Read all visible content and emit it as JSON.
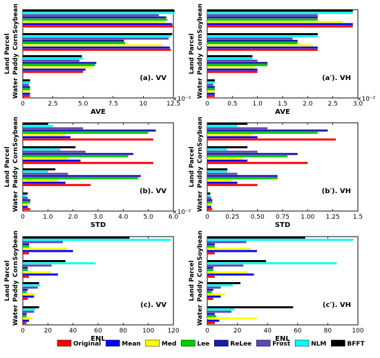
{
  "colors": {
    "Original": "#ff0000",
    "Mean": "#0000ff",
    "Med": "#ffff00",
    "Lee": "#00cc00",
    "ReLee": "#1a1aa8",
    "Frost": "#5d48b0",
    "NLM": "#00ffff",
    "BFFT": "#000000"
  },
  "legend": [
    "Original",
    "Mean",
    "Med",
    "Lee",
    "ReLee",
    "Frost",
    "NLM",
    "BFFT"
  ],
  "chart_data": [
    {
      "type": "bar",
      "title": "(a). VV",
      "xlabel": "AVE",
      "exponent": "×10⁻²",
      "xlim": [
        0,
        12.5
      ],
      "xticks": [
        0,
        2.5,
        5,
        7.5,
        10,
        12.5
      ],
      "xticklabels": [
        "0",
        "2.5",
        "5.0",
        "7.5",
        "10",
        "12.5"
      ],
      "categories": [
        "Soybean",
        "Corn",
        "Paddy",
        "Water"
      ],
      "series": [
        {
          "name": "Original",
          "values": [
            12.5,
            12.3,
            5.0,
            0.6
          ]
        },
        {
          "name": "Mean",
          "values": [
            12.4,
            12.2,
            5.2,
            0.6
          ]
        },
        {
          "name": "Med",
          "values": [
            11.8,
            11.6,
            5.8,
            0.6
          ]
        },
        {
          "name": "Lee",
          "values": [
            12.0,
            8.5,
            6.0,
            0.6
          ]
        },
        {
          "name": "ReLee",
          "values": [
            11.9,
            8.4,
            6.1,
            0.6
          ]
        },
        {
          "name": "Frost",
          "values": [
            11.3,
            12.1,
            4.7,
            0.5
          ]
        },
        {
          "name": "NLM",
          "values": [
            12.6,
            12.3,
            5.0,
            0.6
          ]
        },
        {
          "name": "BFFT",
          "values": [
            12.6,
            12.4,
            4.9,
            0.6
          ]
        }
      ]
    },
    {
      "type": "bar",
      "title": "(a′). VH",
      "xlabel": "AVE",
      "exponent": "×10⁻²",
      "xlim": [
        0,
        3.0
      ],
      "xticks": [
        0,
        0.5,
        1.0,
        1.5,
        2.0,
        2.5,
        3.0
      ],
      "xticklabels": [
        "0",
        "0.5",
        "1.0",
        "1.5",
        "2.0",
        "2.5",
        "3.0"
      ],
      "categories": [
        "Soybean",
        "Corn",
        "Paddy",
        "Water"
      ],
      "series": [
        {
          "name": "Original",
          "values": [
            2.9,
            2.2,
            1.0,
            0.15
          ]
        },
        {
          "name": "Mean",
          "values": [
            2.9,
            2.2,
            1.0,
            0.15
          ]
        },
        {
          "name": "Med",
          "values": [
            2.7,
            2.1,
            0.95,
            0.15
          ]
        },
        {
          "name": "Lee",
          "values": [
            2.2,
            1.8,
            1.2,
            0.15
          ]
        },
        {
          "name": "ReLee",
          "values": [
            2.2,
            1.8,
            1.2,
            0.15
          ]
        },
        {
          "name": "Frost",
          "values": [
            2.2,
            1.7,
            1.0,
            0.12
          ]
        },
        {
          "name": "NLM",
          "values": [
            2.9,
            2.2,
            0.9,
            0.15
          ]
        },
        {
          "name": "BFFT",
          "values": [
            2.9,
            2.2,
            0.9,
            0.15
          ]
        }
      ]
    },
    {
      "type": "bar",
      "title": "(b). VV",
      "xlabel": "STD",
      "exponent": "×10⁻²",
      "xlim": [
        0,
        6.0
      ],
      "xticks": [
        0,
        1,
        2,
        3,
        4,
        5,
        6
      ],
      "xticklabels": [
        "0",
        "1.0",
        "2.0",
        "3.0",
        "4.0",
        "5.0",
        "6.0"
      ],
      "categories": [
        "Soybean",
        "Corn",
        "Paddy",
        "Water"
      ],
      "series": [
        {
          "name": "Original",
          "values": [
            5.2,
            5.2,
            2.7,
            0.3
          ]
        },
        {
          "name": "Mean",
          "values": [
            1.9,
            2.3,
            1.7,
            0.2
          ]
        },
        {
          "name": "Med",
          "values": [
            1.7,
            1.8,
            1.4,
            0.2
          ]
        },
        {
          "name": "Lee",
          "values": [
            5.0,
            4.2,
            4.6,
            0.3
          ]
        },
        {
          "name": "ReLee",
          "values": [
            5.3,
            4.4,
            4.7,
            0.3
          ]
        },
        {
          "name": "Frost",
          "values": [
            2.4,
            2.5,
            1.8,
            0.2
          ]
        },
        {
          "name": "NLM",
          "values": [
            1.2,
            1.5,
            1.0,
            0.15
          ]
        },
        {
          "name": "BFFT",
          "values": [
            1.0,
            2.1,
            1.3,
            0.2
          ]
        }
      ]
    },
    {
      "type": "bar",
      "title": "(b′). VH",
      "xlabel": "STD",
      "exponent": "",
      "xlim": [
        0,
        1.5
      ],
      "xticks": [
        0,
        0.25,
        0.5,
        0.75,
        1.0,
        1.25,
        1.5
      ],
      "xticklabels": [
        "0",
        "0.25",
        "0.50",
        "0.75",
        "1.00",
        "1.25",
        "1.5"
      ],
      "categories": [
        "Soybean",
        "Corn",
        "Paddy",
        "Water"
      ],
      "series": [
        {
          "name": "Original",
          "values": [
            1.28,
            1.0,
            0.5,
            0.05
          ]
        },
        {
          "name": "Mean",
          "values": [
            0.5,
            0.4,
            0.3,
            0.04
          ]
        },
        {
          "name": "Med",
          "values": [
            0.45,
            0.35,
            0.25,
            0.04
          ]
        },
        {
          "name": "Lee",
          "values": [
            1.1,
            0.8,
            0.7,
            0.05
          ]
        },
        {
          "name": "ReLee",
          "values": [
            1.2,
            0.9,
            0.7,
            0.05
          ]
        },
        {
          "name": "Frost",
          "values": [
            0.6,
            0.5,
            0.3,
            0.04
          ]
        },
        {
          "name": "NLM",
          "values": [
            0.3,
            0.2,
            0.2,
            0.03
          ]
        },
        {
          "name": "BFFT",
          "values": [
            0.4,
            0.4,
            0.2,
            0.03
          ]
        }
      ]
    },
    {
      "type": "bar",
      "title": "(c). VV",
      "xlabel": "ENL",
      "exponent": "",
      "xlim": [
        0,
        120
      ],
      "xticks": [
        0,
        20,
        40,
        60,
        80,
        100,
        120
      ],
      "xticklabels": [
        "0",
        "20",
        "40",
        "60",
        "80",
        "100",
        "120"
      ],
      "categories": [
        "Soybean",
        "Corn",
        "Paddy",
        "Water"
      ],
      "series": [
        {
          "name": "Original",
          "values": [
            5,
            5,
            4,
            3
          ]
        },
        {
          "name": "Mean",
          "values": [
            40,
            28,
            9,
            5
          ]
        },
        {
          "name": "Med",
          "values": [
            35,
            22,
            10,
            8
          ]
        },
        {
          "name": "Lee",
          "values": [
            5,
            4,
            3,
            3
          ]
        },
        {
          "name": "ReLee",
          "values": [
            5,
            4,
            4,
            3
          ]
        },
        {
          "name": "Frost",
          "values": [
            32,
            23,
            12,
            9
          ]
        },
        {
          "name": "NLM",
          "values": [
            118,
            58,
            14,
            10
          ]
        },
        {
          "name": "BFFT",
          "values": [
            85,
            34,
            13,
            13
          ]
        }
      ]
    },
    {
      "type": "bar",
      "title": "(c′). VH",
      "xlabel": "ENL",
      "exponent": "",
      "xlim": [
        0,
        100
      ],
      "xticks": [
        0,
        20,
        40,
        60,
        80,
        100
      ],
      "xticklabels": [
        "0",
        "20",
        "40",
        "60",
        "80",
        "100"
      ],
      "categories": [
        "Soybean",
        "Corn",
        "Paddy",
        "Water"
      ],
      "series": [
        {
          "name": "Original",
          "values": [
            5,
            5,
            4,
            5
          ]
        },
        {
          "name": "Mean",
          "values": [
            33,
            31,
            9,
            8
          ]
        },
        {
          "name": "Med",
          "values": [
            29,
            27,
            12,
            33
          ]
        },
        {
          "name": "Lee",
          "values": [
            5,
            4,
            3,
            6
          ]
        },
        {
          "name": "ReLee",
          "values": [
            5,
            4,
            4,
            5
          ]
        },
        {
          "name": "Frost",
          "values": [
            26,
            24,
            9,
            16
          ]
        },
        {
          "name": "NLM",
          "values": [
            97,
            86,
            17,
            18
          ]
        },
        {
          "name": "BFFT",
          "values": [
            65,
            39,
            22,
            57
          ]
        }
      ]
    }
  ],
  "ylabel_groups": [
    {
      "label": "Soybean",
      "cat": "Soybean"
    },
    {
      "label": "Corn",
      "cat": "Corn"
    },
    {
      "label": "Paddy",
      "cat": "Paddy"
    },
    {
      "label": "Water",
      "cat": "Water"
    }
  ],
  "ylabel_parent": "Land Parcel"
}
